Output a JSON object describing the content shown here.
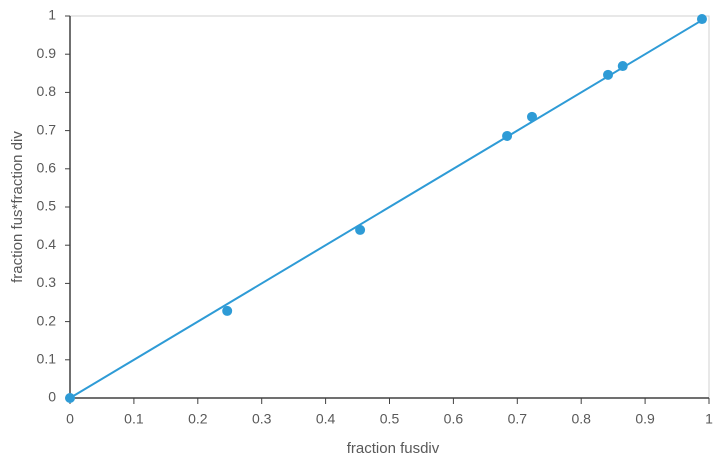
{
  "chart_data": {
    "type": "scatter",
    "x_label": "fraction fusdiv",
    "y_label": "fraction fus*fraction div",
    "x": [
      0,
      0.246,
      0.454,
      0.684,
      0.723,
      0.842,
      0.865,
      0.989
    ],
    "values": [
      0,
      0.228,
      0.44,
      0.686,
      0.736,
      0.846,
      0.869,
      0.992
    ],
    "color": "#2e9bd6",
    "trendline": {
      "x": [
        0,
        0.99
      ],
      "values": [
        0,
        0.99
      ],
      "color": "#2e9bd6"
    },
    "xlim": [
      0,
      1
    ],
    "ylim": [
      0,
      1
    ],
    "xticks": [
      0,
      0.1,
      0.2,
      0.3,
      0.4,
      0.5,
      0.6,
      0.7,
      0.8,
      0.9,
      1
    ],
    "yticks": [
      0,
      0.1,
      0.2,
      0.3,
      0.4,
      0.5,
      0.6,
      0.7,
      0.8,
      0.9,
      1
    ]
  }
}
